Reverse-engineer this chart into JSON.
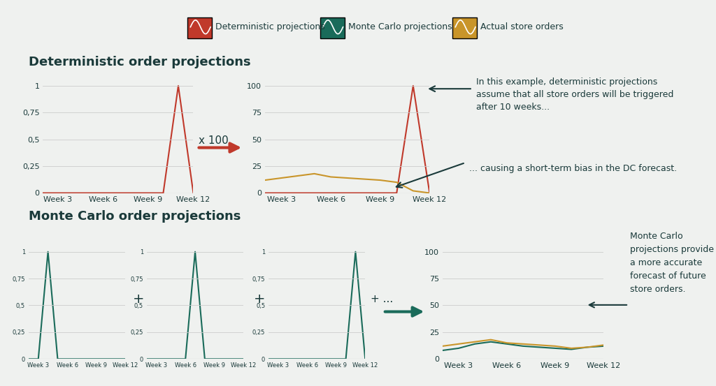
{
  "bg_color": "#eff1ef",
  "title_color": "#1a3a3a",
  "text_color": "#1a3a3a",
  "red_color": "#c0392b",
  "green_color": "#1a6b5a",
  "gold_color": "#c9952a",
  "legend_items": [
    "Deterministic projections",
    "Monte Carlo projections",
    "Actual store orders"
  ],
  "legend_colors": [
    "#c0392b",
    "#1a6b5a",
    "#c9952a"
  ],
  "section1_title": "Deterministic order projections",
  "section2_title": "Monte Carlo order projections",
  "weeks": [
    "Week 3",
    "Week 6",
    "Week 9",
    "Week 12"
  ],
  "det_proj_y": [
    0,
    0,
    0,
    0,
    0,
    0,
    0,
    0,
    0,
    1,
    0
  ],
  "det_scaled_y": [
    0,
    0,
    0,
    0,
    0,
    0,
    0,
    0,
    0,
    100,
    0
  ],
  "actual_orders_y": [
    12,
    14,
    16,
    18,
    15,
    14,
    13,
    12,
    10,
    2,
    0
  ],
  "mc_proj1_peak": 2,
  "mc_proj2_peak": 5,
  "mc_proj3_peak": 9,
  "mc_result_mc_y": [
    8,
    10,
    14,
    16,
    14,
    12,
    11,
    10,
    9,
    11,
    12
  ],
  "mc_result_actual_y": [
    12,
    14,
    16,
    18,
    15,
    14,
    13,
    12,
    10,
    11,
    13
  ],
  "annotation1": "In this example, deterministic projections\nassume that all store orders will be triggered\nafter 10 weeks...",
  "annotation2": "... causing a short-term bias in the DC forecast.",
  "annotation3": "Monte Carlo\nprojections provide\na more accurate\nforecast of future\nstore orders.",
  "x100_text": "x 100",
  "plus_dots_text": "+ ..."
}
